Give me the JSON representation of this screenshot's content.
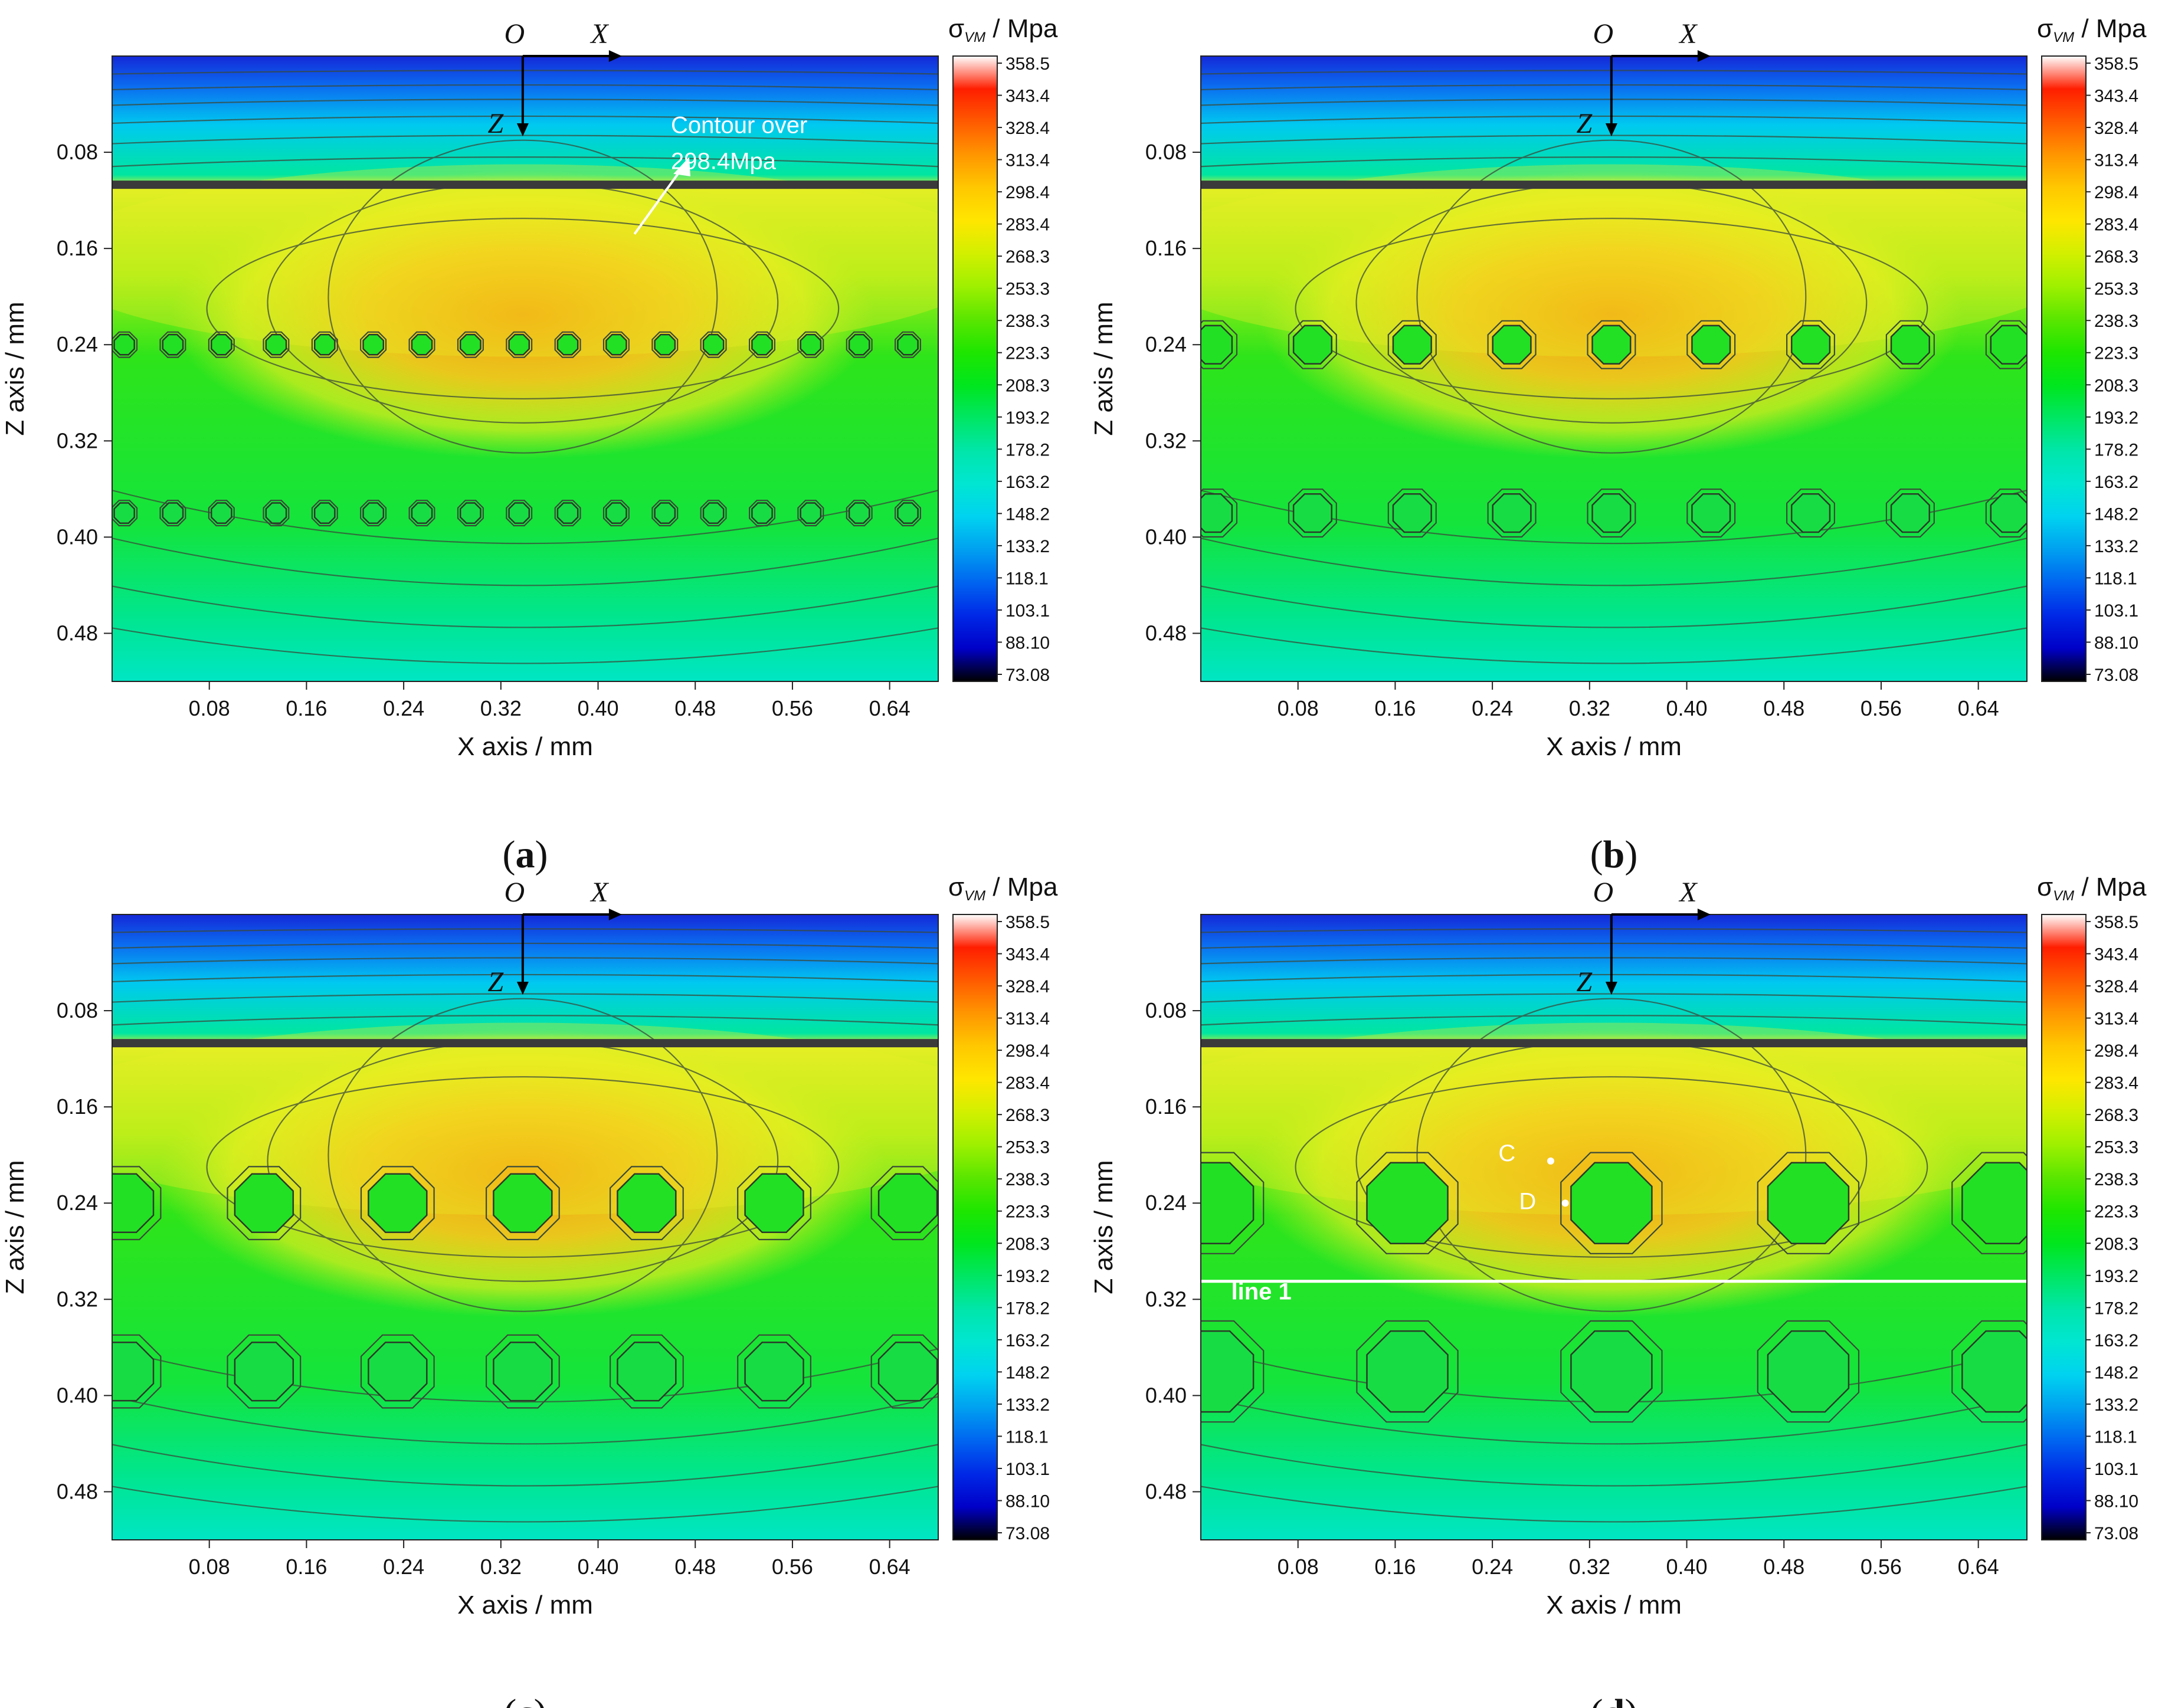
{
  "figure": {
    "panel_labels": [
      "a",
      "b",
      "c",
      "d"
    ],
    "colorbar_title": "σVM / Mpa",
    "colorbar_title_main": "σ",
    "colorbar_title_sub": "VM",
    "colorbar_title_unit": " / Mpa",
    "colorbar_ticks": [
      "358.5",
      "343.4",
      "328.4",
      "313.4",
      "298.4",
      "283.4",
      "268.3",
      "253.3",
      "238.3",
      "223.3",
      "208.3",
      "193.2",
      "178.2",
      "163.2",
      "148.2",
      "133.2",
      "118.1",
      "103.1",
      "88.10",
      "73.08"
    ],
    "colorbar_colors": [
      "#ffffff",
      "#ff1e00",
      "#ff5a00",
      "#ff9600",
      "#ffc800",
      "#ffe600",
      "#d2f000",
      "#9ef000",
      "#5ae600",
      "#1ee600",
      "#00e61e",
      "#00e664",
      "#00e6aa",
      "#00e6d2",
      "#00d2f0",
      "#00a0f0",
      "#0064f0",
      "#0028e6",
      "#0000c8",
      "#000000"
    ],
    "origin_labels": {
      "o": "O",
      "x": "X",
      "z": "Z"
    }
  },
  "chart_data": [
    {
      "panel": "a",
      "type": "heatmap",
      "title": "(a)",
      "xlabel": "X axis / mm",
      "ylabel": "Z axis / mm",
      "xlim": [
        0,
        0.68
      ],
      "ylim": [
        0.52,
        0
      ],
      "xticks": [
        "0.08",
        "0.16",
        "0.24",
        "0.32",
        "0.40",
        "0.48",
        "0.56",
        "0.64"
      ],
      "yticks": [
        "0.08",
        "0.16",
        "0.24",
        "0.32",
        "0.40",
        "0.48"
      ],
      "value_range": [
        73.08,
        358.5
      ],
      "interface_z": 0.107,
      "pore_rows": [
        {
          "z": 0.24,
          "x": [
            0.01,
            0.05,
            0.09,
            0.135,
            0.175,
            0.215,
            0.255,
            0.295,
            0.335,
            0.375,
            0.415,
            0.455,
            0.495,
            0.535,
            0.575,
            0.615,
            0.655
          ],
          "r": 0.009
        },
        {
          "z": 0.38,
          "x": [
            0.01,
            0.05,
            0.09,
            0.135,
            0.175,
            0.215,
            0.255,
            0.295,
            0.335,
            0.375,
            0.415,
            0.455,
            0.495,
            0.535,
            0.575,
            0.615,
            0.655
          ],
          "r": 0.009
        }
      ],
      "annotations": [
        {
          "text": "Contour over",
          "x": 0.46,
          "z": 0.064
        },
        {
          "text": "298.4Mpa",
          "x": 0.46,
          "z": 0.094
        }
      ]
    },
    {
      "panel": "b",
      "type": "heatmap",
      "title": "(b)",
      "xlabel": "X axis / mm",
      "ylabel": "Z axis / mm",
      "xlim": [
        0,
        0.68
      ],
      "ylim": [
        0.52,
        0
      ],
      "xticks": [
        "0.08",
        "0.16",
        "0.24",
        "0.32",
        "0.40",
        "0.48",
        "0.56",
        "0.64"
      ],
      "yticks": [
        "0.08",
        "0.16",
        "0.24",
        "0.32",
        "0.40",
        "0.48"
      ],
      "value_range": [
        73.08,
        358.5
      ],
      "interface_z": 0.107,
      "pore_rows": [
        {
          "z": 0.24,
          "x": [
            0.01,
            0.092,
            0.174,
            0.256,
            0.338,
            0.42,
            0.502,
            0.584,
            0.666
          ],
          "r": 0.017
        },
        {
          "z": 0.38,
          "x": [
            0.01,
            0.092,
            0.174,
            0.256,
            0.338,
            0.42,
            0.502,
            0.584,
            0.666
          ],
          "r": 0.017
        }
      ],
      "annotations": []
    },
    {
      "panel": "c",
      "type": "heatmap",
      "title": "(c)",
      "xlabel": "X axis / mm",
      "ylabel": "Z axis / mm",
      "xlim": [
        0,
        0.68
      ],
      "ylim": [
        0.52,
        0
      ],
      "xticks": [
        "0.08",
        "0.16",
        "0.24",
        "0.32",
        "0.40",
        "0.48",
        "0.56",
        "0.64"
      ],
      "yticks": [
        "0.08",
        "0.16",
        "0.24",
        "0.32",
        "0.40",
        "0.48"
      ],
      "value_range": [
        73.08,
        358.5
      ],
      "interface_z": 0.107,
      "pore_rows": [
        {
          "z": 0.24,
          "x": [
            0.01,
            0.125,
            0.235,
            0.338,
            0.44,
            0.545,
            0.655
          ],
          "r": 0.026
        },
        {
          "z": 0.38,
          "x": [
            0.01,
            0.125,
            0.235,
            0.338,
            0.44,
            0.545,
            0.655
          ],
          "r": 0.026
        }
      ],
      "annotations": []
    },
    {
      "panel": "d",
      "type": "heatmap",
      "title": "(d)",
      "xlabel": "X axis / mm",
      "ylabel": "Z axis / mm",
      "xlim": [
        0,
        0.68
      ],
      "ylim": [
        0.52,
        0
      ],
      "xticks": [
        "0.08",
        "0.16",
        "0.24",
        "0.32",
        "0.40",
        "0.48",
        "0.56",
        "0.64"
      ],
      "yticks": [
        "0.08",
        "0.16",
        "0.24",
        "0.32",
        "0.40",
        "0.48"
      ],
      "value_range": [
        73.08,
        358.5
      ],
      "interface_z": 0.107,
      "pore_rows": [
        {
          "z": 0.24,
          "x": [
            0.01,
            0.17,
            0.338,
            0.5,
            0.66
          ],
          "r": 0.036
        },
        {
          "z": 0.38,
          "x": [
            0.01,
            0.17,
            0.338,
            0.5,
            0.66
          ],
          "r": 0.036
        }
      ],
      "line1_z": 0.305,
      "annotations": [
        {
          "text": "line 1",
          "x": 0.025,
          "z": 0.32
        },
        {
          "text": "C",
          "x": 0.245,
          "z": 0.205
        },
        {
          "text": "D",
          "x": 0.262,
          "z": 0.245
        }
      ],
      "points": [
        {
          "label": "C",
          "x": 0.288,
          "z": 0.205
        },
        {
          "label": "D",
          "x": 0.3,
          "z": 0.24
        }
      ]
    }
  ]
}
